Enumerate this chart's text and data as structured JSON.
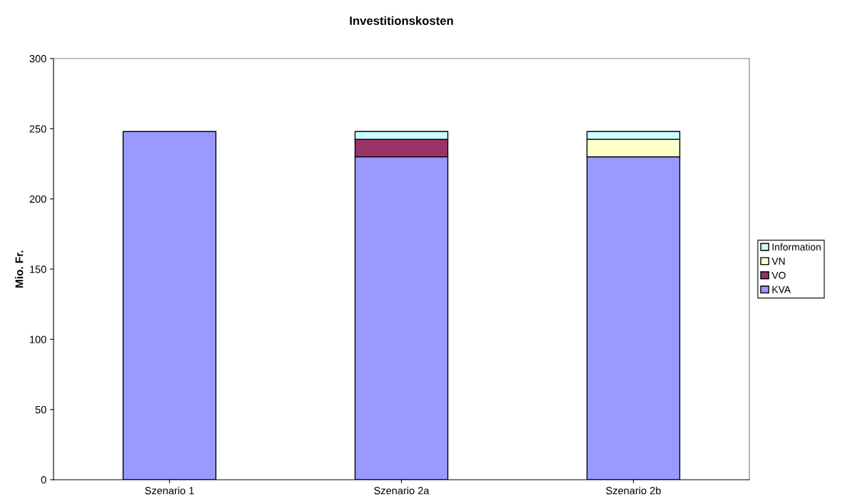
{
  "chart_data": {
    "type": "bar",
    "title": "Investitionskosten",
    "ylabel": "Mio. Fr.",
    "categories": [
      "Szenario 1",
      "Szenario 2a",
      "Szenario 2b"
    ],
    "stacked": true,
    "series": [
      {
        "name": "KVA",
        "color": "#9999ff",
        "values": [
          248,
          230,
          230
        ]
      },
      {
        "name": "VO",
        "color": "#993366",
        "values": [
          null,
          12.5,
          null
        ]
      },
      {
        "name": "VN",
        "color": "#ffffcc",
        "values": [
          null,
          null,
          12.5
        ]
      },
      {
        "name": "Information",
        "color": "#ccffff",
        "values": [
          null,
          5.5,
          5.5
        ]
      }
    ],
    "ylim": [
      0,
      300
    ],
    "yticks": [
      0,
      50,
      100,
      150,
      200,
      250,
      300
    ],
    "grid": false,
    "legend": "right"
  }
}
